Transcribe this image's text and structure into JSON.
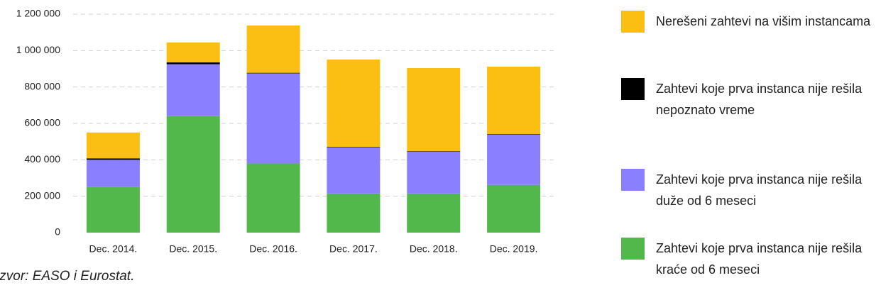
{
  "chart_data": {
    "type": "stacked_bar",
    "categories": [
      "Dec. 2014.",
      "Dec. 2015.",
      "Dec. 2016.",
      "Dec. 2017.",
      "Dec. 2018.",
      "Dec. 2019."
    ],
    "series": [
      {
        "name": "Zahtevi koje prva instanca nije rešila kraće od 6 meseci",
        "color": "#52b84b",
        "values": [
          250000,
          640000,
          380000,
          215000,
          215000,
          262000
        ]
      },
      {
        "name": "Zahtevi koje prva instanca nije rešila duže od 6 meseci",
        "color": "#8a80ff",
        "values": [
          150000,
          285000,
          495000,
          253000,
          229000,
          276000
        ]
      },
      {
        "name": "Zahtevi koje prva instanca nije rešila nepoznato vreme",
        "color": "#000000",
        "values": [
          8000,
          10000,
          3000,
          3000,
          3000,
          3000
        ]
      },
      {
        "name": "Nerešeni zahtevi na višim instancama",
        "color": "#fbbf14",
        "values": [
          142000,
          110000,
          260000,
          480000,
          457000,
          371000
        ]
      }
    ],
    "ylim": [
      0,
      1200000
    ],
    "yticks": [
      0,
      {
        "value": 200000,
        "label": "200 000"
      },
      {
        "value": 400000,
        "label": "400 000"
      },
      {
        "value": 600000,
        "label": "600 000"
      },
      {
        "value": 800000,
        "label": "800 000"
      },
      {
        "value": 1000000,
        "label": "1 000 000"
      },
      {
        "value": 1200000,
        "label": "1 200 000"
      }
    ],
    "grid": true,
    "source": "Izvor: EASO i Eurostat."
  }
}
